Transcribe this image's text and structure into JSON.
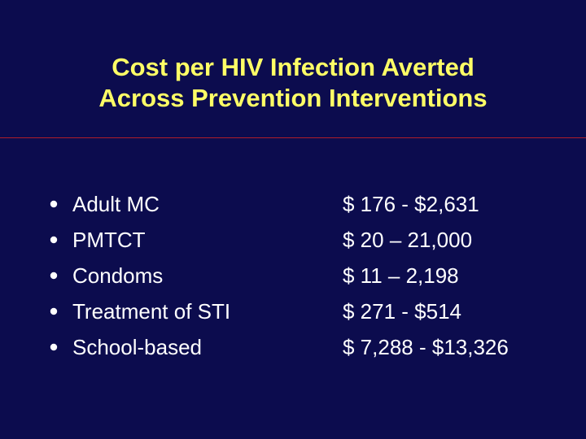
{
  "slide": {
    "title_lines": [
      "Cost per HIV Infection Averted",
      "Across Prevention Interventions"
    ]
  },
  "interventions": [
    {
      "label": "Adult MC",
      "cost": "$ 176 - $2,631"
    },
    {
      "label": "PMTCT",
      "cost": "$ 20 – 21,000"
    },
    {
      "label": "Condoms",
      "cost": "$ 11 – 2,198"
    },
    {
      "label": "Treatment of STI",
      "cost": "$ 271 - $514"
    },
    {
      "label": "School-based",
      "cost": "$ 7,288 - $13,326"
    }
  ],
  "colors": {
    "background": "#0c0c4e",
    "title": "#ffff66",
    "body_text": "#ffffff",
    "divider": "#b01e2a"
  }
}
